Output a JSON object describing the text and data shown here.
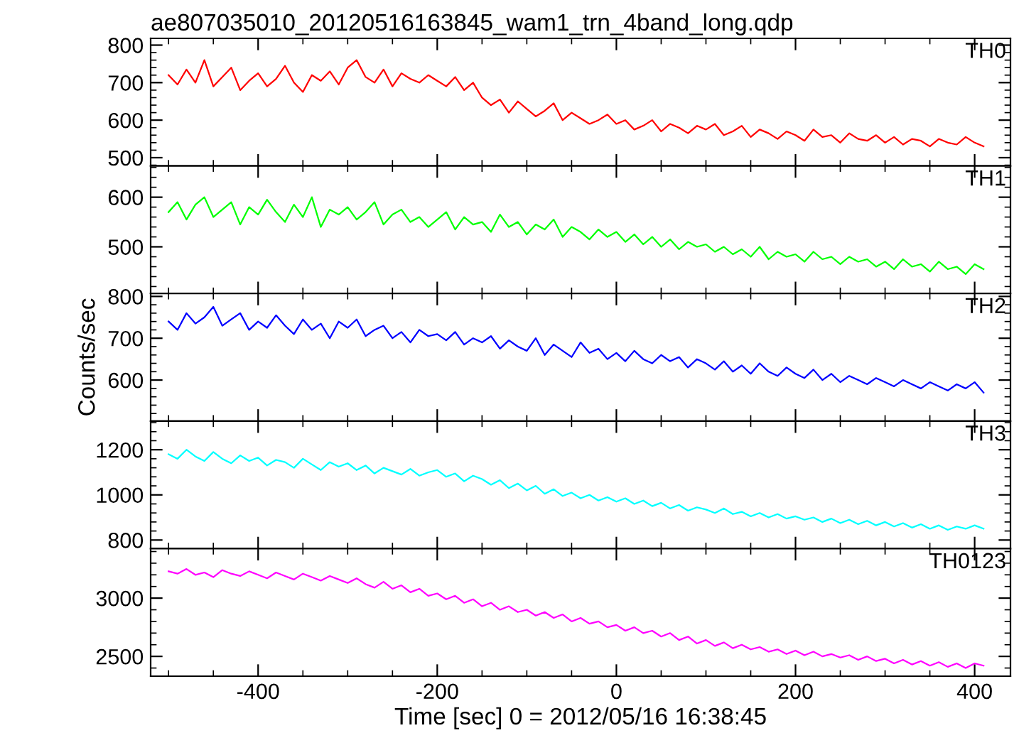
{
  "chart_data": [
    {
      "type": "line",
      "title": "ae807035010_20120516163845_wam1_trn_4band_long.qdp",
      "tick_labels": "y",
      "xlim": [
        -520,
        440
      ],
      "xticks": [
        -400,
        -200,
        0,
        200,
        400
      ],
      "ylim": [
        478,
        818
      ],
      "yticks": [
        500,
        600,
        700,
        800
      ],
      "x": [
        -500,
        -490,
        -480,
        -470,
        -460,
        -450,
        -440,
        -430,
        -420,
        -410,
        -400,
        -390,
        -380,
        -370,
        -360,
        -350,
        -340,
        -330,
        -320,
        -310,
        -300,
        -290,
        -280,
        -270,
        -260,
        -250,
        -240,
        -230,
        -220,
        -210,
        -200,
        -190,
        -180,
        -170,
        -160,
        -150,
        -140,
        -130,
        -120,
        -110,
        -100,
        -90,
        -80,
        -70,
        -60,
        -50,
        -40,
        -30,
        -20,
        -10,
        0,
        10,
        20,
        30,
        40,
        50,
        60,
        70,
        80,
        90,
        100,
        110,
        120,
        130,
        140,
        150,
        160,
        170,
        180,
        190,
        200,
        210,
        220,
        230,
        240,
        250,
        260,
        270,
        280,
        290,
        300,
        310,
        320,
        330,
        340,
        350,
        360,
        370,
        380,
        390,
        400,
        410
      ],
      "series": [
        {
          "name": "TH0",
          "color": "#ff0000",
          "values": [
            720,
            695,
            735,
            700,
            760,
            690,
            715,
            740,
            680,
            705,
            725,
            690,
            710,
            745,
            700,
            675,
            720,
            705,
            730,
            695,
            740,
            760,
            715,
            700,
            735,
            690,
            725,
            710,
            700,
            720,
            705,
            690,
            715,
            680,
            700,
            660,
            640,
            655,
            620,
            650,
            630,
            610,
            625,
            645,
            600,
            620,
            605,
            590,
            600,
            615,
            590,
            600,
            575,
            585,
            600,
            570,
            590,
            580,
            565,
            585,
            575,
            590,
            560,
            570,
            585,
            555,
            575,
            565,
            550,
            570,
            560,
            545,
            575,
            555,
            560,
            540,
            565,
            550,
            545,
            560,
            540,
            555,
            535,
            550,
            545,
            530,
            550,
            540,
            535,
            555,
            540,
            530
          ]
        }
      ]
    },
    {
      "type": "line",
      "tick_labels": "y",
      "xlim": [
        -520,
        440
      ],
      "xticks": [
        -400,
        -200,
        0,
        200,
        400
      ],
      "ylim": [
        406,
        663
      ],
      "yticks": [
        500,
        600
      ],
      "x": [
        -500,
        -490,
        -480,
        -470,
        -460,
        -450,
        -440,
        -430,
        -420,
        -410,
        -400,
        -390,
        -380,
        -370,
        -360,
        -350,
        -340,
        -330,
        -320,
        -310,
        -300,
        -290,
        -280,
        -270,
        -260,
        -250,
        -240,
        -230,
        -220,
        -210,
        -200,
        -190,
        -180,
        -170,
        -160,
        -150,
        -140,
        -130,
        -120,
        -110,
        -100,
        -90,
        -80,
        -70,
        -60,
        -50,
        -40,
        -30,
        -20,
        -10,
        0,
        10,
        20,
        30,
        40,
        50,
        60,
        70,
        80,
        90,
        100,
        110,
        120,
        130,
        140,
        150,
        160,
        170,
        180,
        190,
        200,
        210,
        220,
        230,
        240,
        250,
        260,
        270,
        280,
        290,
        300,
        310,
        320,
        330,
        340,
        350,
        360,
        370,
        380,
        390,
        400,
        410
      ],
      "series": [
        {
          "name": "TH1",
          "color": "#00ff00",
          "values": [
            570,
            590,
            555,
            585,
            600,
            560,
            575,
            590,
            545,
            580,
            565,
            595,
            570,
            550,
            585,
            560,
            600,
            540,
            575,
            565,
            580,
            555,
            570,
            590,
            545,
            565,
            575,
            550,
            560,
            540,
            555,
            570,
            535,
            560,
            545,
            550,
            530,
            565,
            540,
            550,
            525,
            545,
            535,
            555,
            520,
            540,
            530,
            515,
            535,
            520,
            530,
            510,
            525,
            505,
            520,
            500,
            515,
            495,
            510,
            500,
            505,
            490,
            500,
            485,
            495,
            480,
            500,
            475,
            490,
            480,
            485,
            470,
            490,
            475,
            480,
            465,
            480,
            470,
            475,
            460,
            470,
            455,
            475,
            460,
            465,
            450,
            470,
            455,
            460,
            445,
            465,
            455
          ]
        }
      ]
    },
    {
      "type": "line",
      "ylabel": "Counts/sec",
      "tick_labels": "y",
      "xlim": [
        -520,
        440
      ],
      "xticks": [
        -400,
        -200,
        0,
        200,
        400
      ],
      "ylim": [
        502,
        807
      ],
      "yticks": [
        600,
        700,
        800
      ],
      "x": [
        -500,
        -490,
        -480,
        -470,
        -460,
        -450,
        -440,
        -430,
        -420,
        -410,
        -400,
        -390,
        -380,
        -370,
        -360,
        -350,
        -340,
        -330,
        -320,
        -310,
        -300,
        -290,
        -280,
        -270,
        -260,
        -250,
        -240,
        -230,
        -220,
        -210,
        -200,
        -190,
        -180,
        -170,
        -160,
        -150,
        -140,
        -130,
        -120,
        -110,
        -100,
        -90,
        -80,
        -70,
        -60,
        -50,
        -40,
        -30,
        -20,
        -10,
        0,
        10,
        20,
        30,
        40,
        50,
        60,
        70,
        80,
        90,
        100,
        110,
        120,
        130,
        140,
        150,
        160,
        170,
        180,
        190,
        200,
        210,
        220,
        230,
        240,
        250,
        260,
        270,
        280,
        290,
        300,
        310,
        320,
        330,
        340,
        350,
        360,
        370,
        380,
        390,
        400,
        410
      ],
      "series": [
        {
          "name": "TH2",
          "color": "#0000ff",
          "values": [
            740,
            720,
            760,
            735,
            750,
            775,
            730,
            745,
            760,
            720,
            740,
            725,
            755,
            730,
            710,
            745,
            720,
            735,
            700,
            740,
            725,
            745,
            705,
            720,
            730,
            700,
            715,
            690,
            720,
            705,
            710,
            695,
            715,
            685,
            700,
            690,
            705,
            675,
            695,
            680,
            670,
            700,
            660,
            685,
            670,
            655,
            690,
            665,
            675,
            650,
            665,
            645,
            670,
            650,
            640,
            660,
            645,
            655,
            630,
            650,
            640,
            625,
            645,
            620,
            635,
            615,
            640,
            620,
            610,
            630,
            615,
            605,
            625,
            600,
            615,
            595,
            610,
            600,
            590,
            605,
            595,
            585,
            600,
            590,
            580,
            595,
            585,
            575,
            590,
            580,
            595,
            570
          ]
        }
      ]
    },
    {
      "type": "line",
      "tick_labels": "y",
      "xlim": [
        -520,
        440
      ],
      "xticks": [
        -400,
        -200,
        0,
        200,
        400
      ],
      "ylim": [
        762,
        1327
      ],
      "yticks": [
        800,
        1000,
        1200
      ],
      "x": [
        -500,
        -490,
        -480,
        -470,
        -460,
        -450,
        -440,
        -430,
        -420,
        -410,
        -400,
        -390,
        -380,
        -370,
        -360,
        -350,
        -340,
        -330,
        -320,
        -310,
        -300,
        -290,
        -280,
        -270,
        -260,
        -250,
        -240,
        -230,
        -220,
        -210,
        -200,
        -190,
        -180,
        -170,
        -160,
        -150,
        -140,
        -130,
        -120,
        -110,
        -100,
        -90,
        -80,
        -70,
        -60,
        -50,
        -40,
        -30,
        -20,
        -10,
        0,
        10,
        20,
        30,
        40,
        50,
        60,
        70,
        80,
        90,
        100,
        110,
        120,
        130,
        140,
        150,
        160,
        170,
        180,
        190,
        200,
        210,
        220,
        230,
        240,
        250,
        260,
        270,
        280,
        290,
        300,
        310,
        320,
        330,
        340,
        350,
        360,
        370,
        380,
        390,
        400,
        410
      ],
      "series": [
        {
          "name": "TH3",
          "color": "#00ffff",
          "values": [
            1180,
            1160,
            1200,
            1170,
            1150,
            1190,
            1160,
            1140,
            1175,
            1150,
            1165,
            1130,
            1155,
            1145,
            1120,
            1160,
            1135,
            1110,
            1145,
            1125,
            1140,
            1110,
            1130,
            1095,
            1120,
            1105,
            1090,
            1115,
            1085,
            1100,
            1110,
            1080,
            1095,
            1060,
            1085,
            1070,
            1045,
            1065,
            1030,
            1050,
            1020,
            1040,
            1005,
            1025,
            995,
            1010,
            985,
            1000,
            975,
            990,
            970,
            985,
            960,
            975,
            950,
            965,
            940,
            955,
            930,
            945,
            935,
            920,
            940,
            915,
            925,
            905,
            920,
            900,
            915,
            895,
            905,
            890,
            900,
            880,
            895,
            875,
            890,
            870,
            885,
            865,
            880,
            860,
            875,
            855,
            870,
            850,
            865,
            845,
            860,
            850,
            865,
            850
          ]
        }
      ]
    },
    {
      "type": "line",
      "xlabel": "Time [sec] 0 = 2012/05/16 16:38:45",
      "xlim": [
        -520,
        440
      ],
      "xticks": [
        -400,
        -200,
        0,
        200,
        400
      ],
      "ylim": [
        2330,
        3425
      ],
      "yticks": [
        2500,
        3000
      ],
      "x": [
        -500,
        -490,
        -480,
        -470,
        -460,
        -450,
        -440,
        -430,
        -420,
        -410,
        -400,
        -390,
        -380,
        -370,
        -360,
        -350,
        -340,
        -330,
        -320,
        -310,
        -300,
        -290,
        -280,
        -270,
        -260,
        -250,
        -240,
        -230,
        -220,
        -210,
        -200,
        -190,
        -180,
        -170,
        -160,
        -150,
        -140,
        -130,
        -120,
        -110,
        -100,
        -90,
        -80,
        -70,
        -60,
        -50,
        -40,
        -30,
        -20,
        -10,
        0,
        10,
        20,
        30,
        40,
        50,
        60,
        70,
        80,
        90,
        100,
        110,
        120,
        130,
        140,
        150,
        160,
        170,
        180,
        190,
        200,
        210,
        220,
        230,
        240,
        250,
        260,
        270,
        280,
        290,
        300,
        310,
        320,
        330,
        340,
        350,
        360,
        370,
        380,
        390,
        400,
        410
      ],
      "series": [
        {
          "name": "TH0123",
          "color": "#ff00ff",
          "values": [
            3230,
            3210,
            3250,
            3200,
            3220,
            3180,
            3240,
            3210,
            3190,
            3230,
            3200,
            3170,
            3220,
            3190,
            3160,
            3210,
            3180,
            3150,
            3190,
            3160,
            3130,
            3170,
            3120,
            3090,
            3140,
            3080,
            3110,
            3050,
            3080,
            3020,
            3040,
            2990,
            3020,
            2960,
            2990,
            2930,
            2960,
            2900,
            2930,
            2880,
            2900,
            2850,
            2880,
            2830,
            2860,
            2800,
            2830,
            2780,
            2800,
            2750,
            2770,
            2720,
            2750,
            2700,
            2720,
            2670,
            2700,
            2640,
            2670,
            2610,
            2640,
            2590,
            2620,
            2570,
            2600,
            2560,
            2580,
            2540,
            2560,
            2520,
            2550,
            2510,
            2540,
            2500,
            2520,
            2490,
            2510,
            2470,
            2500,
            2460,
            2480,
            2440,
            2470,
            2430,
            2460,
            2420,
            2450,
            2410,
            2440,
            2400,
            2440,
            2420
          ]
        }
      ]
    }
  ]
}
